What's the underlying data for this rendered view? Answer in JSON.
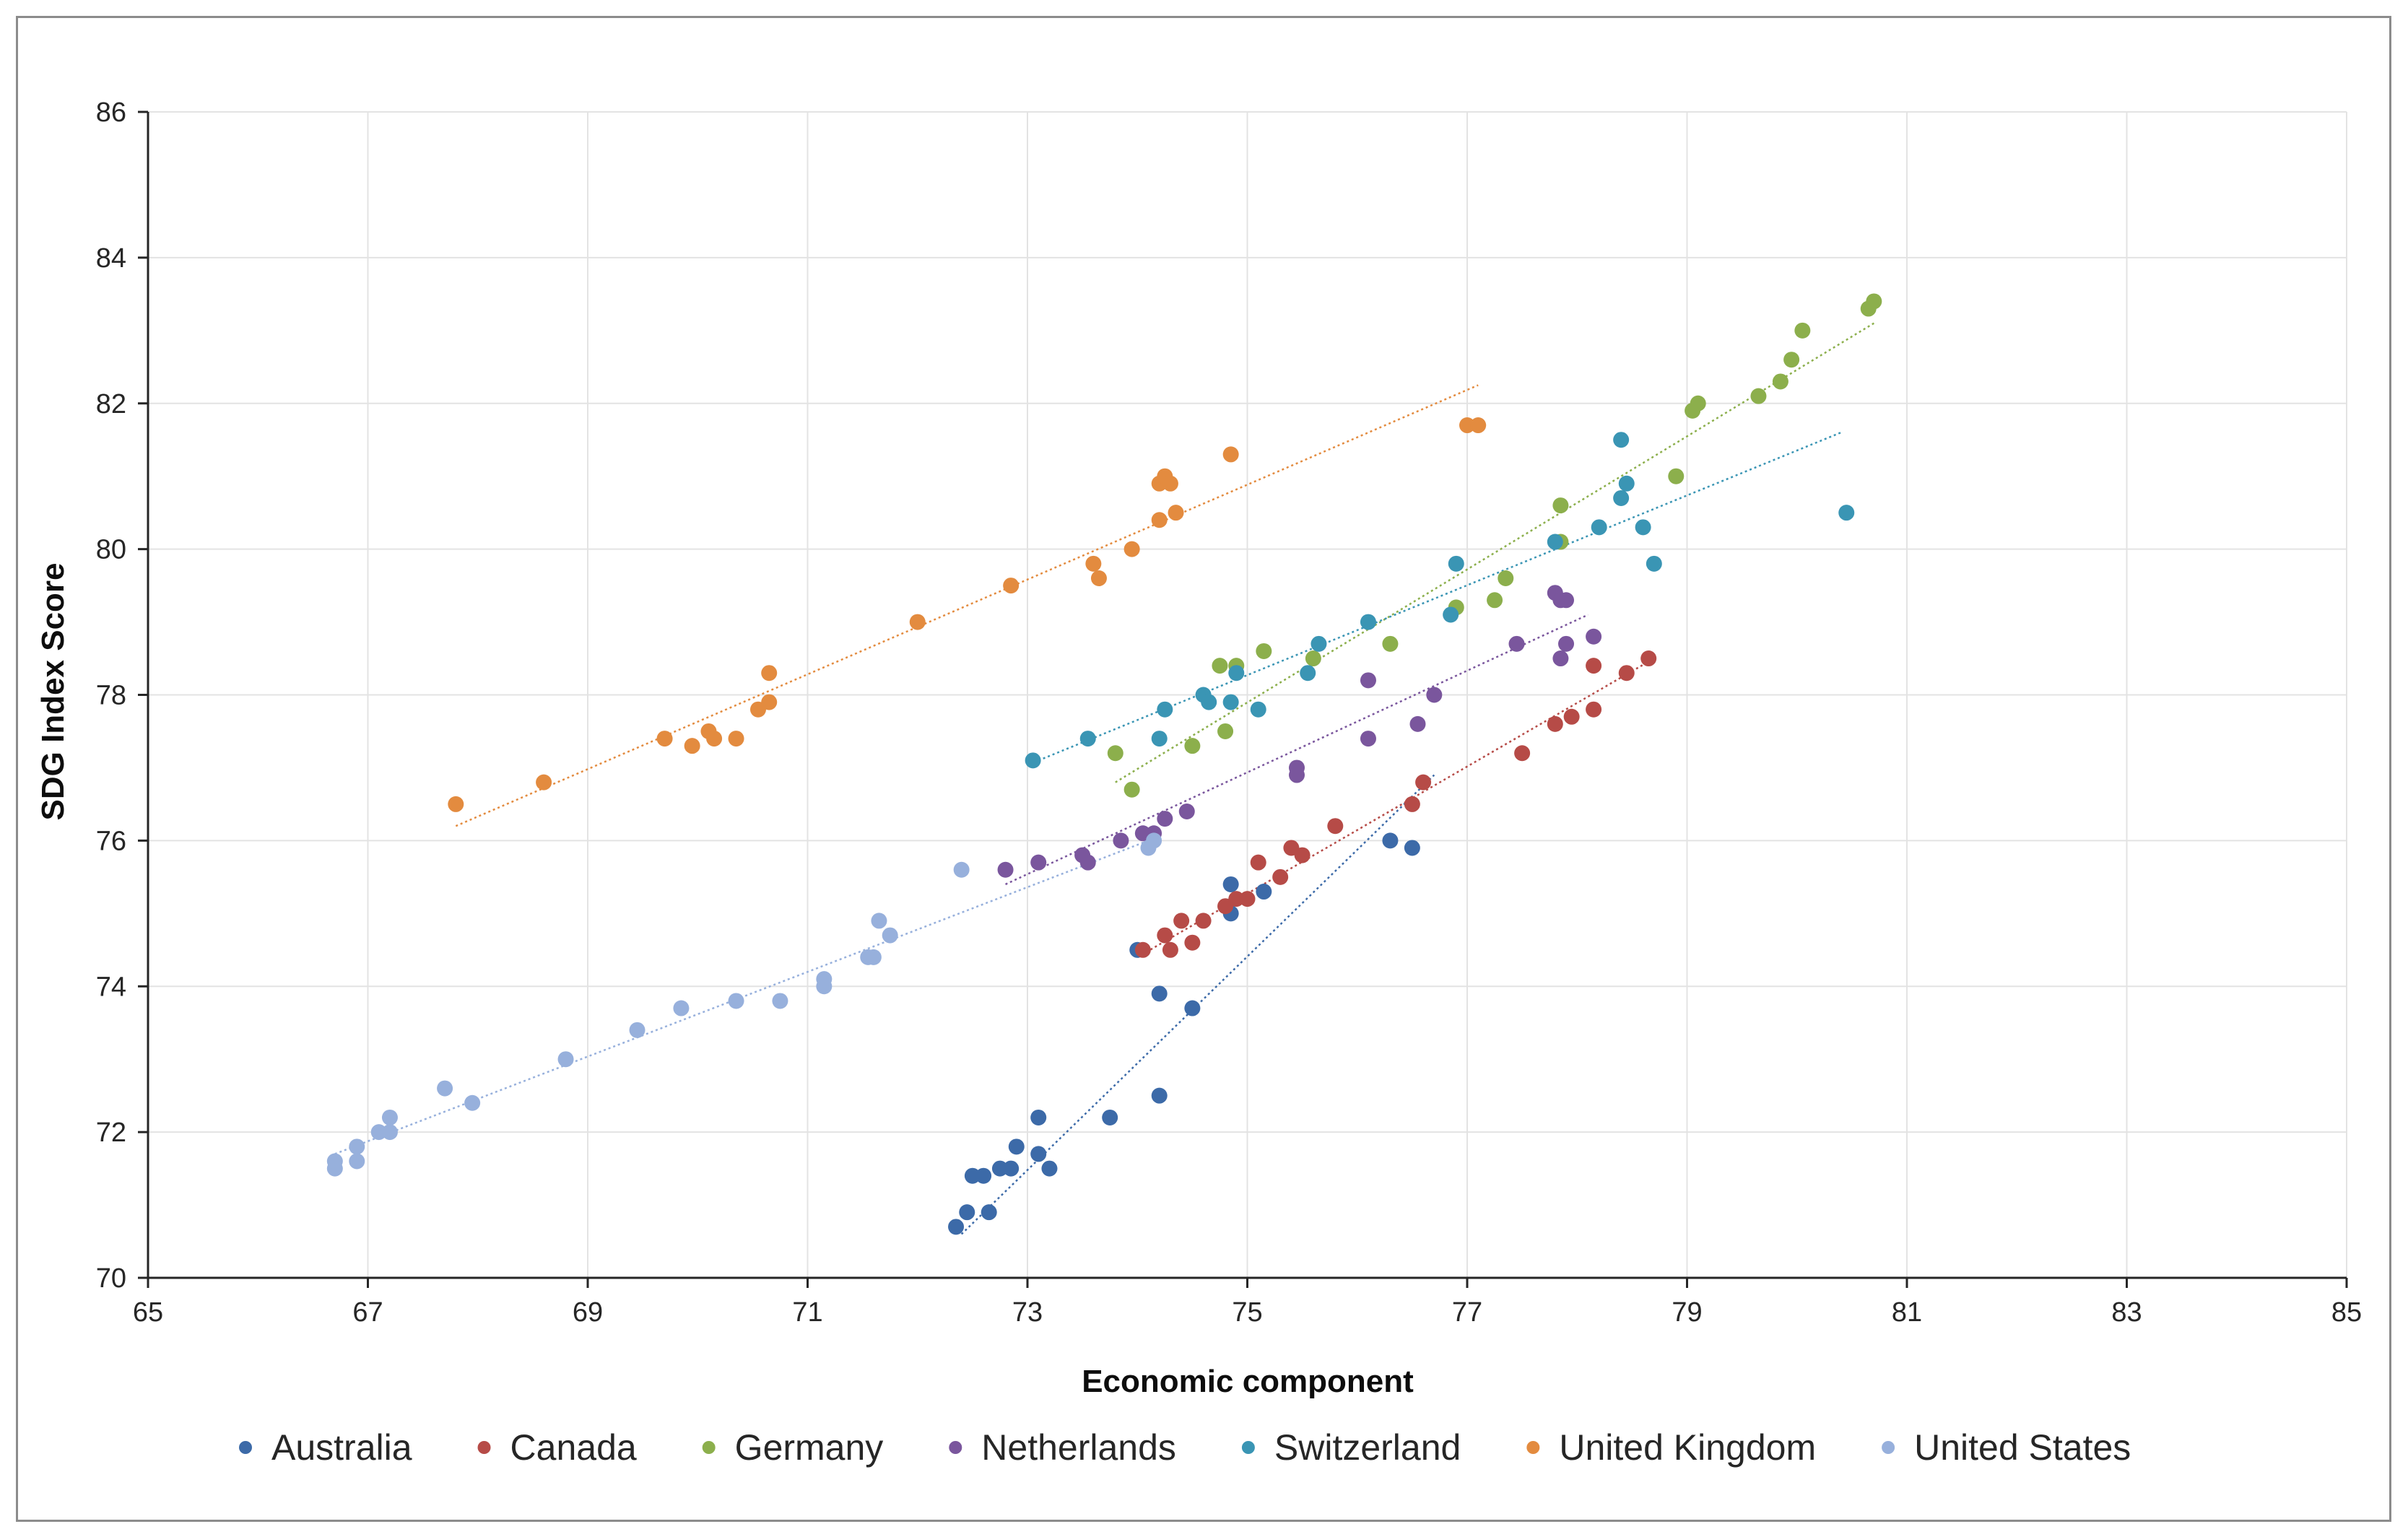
{
  "chart_data": {
    "type": "scatter",
    "title": "",
    "xlabel": "Economic component",
    "ylabel": "SDG Index Score",
    "xlim": [
      65,
      85
    ],
    "ylim": [
      70,
      86
    ],
    "xticks": [
      65,
      67,
      69,
      71,
      73,
      75,
      77,
      79,
      81,
      83,
      85
    ],
    "yticks": [
      70,
      72,
      74,
      76,
      78,
      80,
      82,
      84,
      86
    ],
    "grid": true,
    "legend_position": "bottom",
    "trendlines": "linear, dotted, one per series",
    "series": [
      {
        "name": "Australia",
        "color": "#3c6aa8",
        "points": [
          [
            72.35,
            70.7
          ],
          [
            72.45,
            70.9
          ],
          [
            72.65,
            70.9
          ],
          [
            72.5,
            71.4
          ],
          [
            72.6,
            71.4
          ],
          [
            72.75,
            71.5
          ],
          [
            72.85,
            71.5
          ],
          [
            72.9,
            71.8
          ],
          [
            73.1,
            71.7
          ],
          [
            73.2,
            71.5
          ],
          [
            73.1,
            72.2
          ],
          [
            73.75,
            72.2
          ],
          [
            74.2,
            72.5
          ],
          [
            74.5,
            73.7
          ],
          [
            74.2,
            73.9
          ],
          [
            74.0,
            74.5
          ],
          [
            74.85,
            75.0
          ],
          [
            74.85,
            75.4
          ],
          [
            75.15,
            75.3
          ],
          [
            76.3,
            76.0
          ],
          [
            76.5,
            75.9
          ]
        ],
        "trend": [
          [
            72.4,
            70.6
          ],
          [
            76.7,
            76.9
          ]
        ]
      },
      {
        "name": "Canada",
        "color": "#b64b47",
        "points": [
          [
            74.05,
            74.5
          ],
          [
            74.25,
            74.7
          ],
          [
            74.3,
            74.5
          ],
          [
            74.4,
            74.9
          ],
          [
            74.5,
            74.6
          ],
          [
            74.6,
            74.9
          ],
          [
            74.8,
            75.1
          ],
          [
            74.9,
            75.2
          ],
          [
            75.0,
            75.2
          ],
          [
            75.1,
            75.7
          ],
          [
            75.3,
            75.5
          ],
          [
            75.4,
            75.9
          ],
          [
            75.5,
            75.8
          ],
          [
            75.8,
            76.2
          ],
          [
            76.5,
            76.5
          ],
          [
            76.6,
            76.8
          ],
          [
            77.5,
            77.2
          ],
          [
            77.8,
            77.6
          ],
          [
            77.95,
            77.7
          ],
          [
            78.15,
            77.8
          ],
          [
            78.15,
            78.4
          ],
          [
            78.45,
            78.3
          ],
          [
            78.65,
            78.5
          ]
        ],
        "trend": [
          [
            74.0,
            74.4
          ],
          [
            78.7,
            78.5
          ]
        ]
      },
      {
        "name": "Germany",
        "color": "#8caf4c",
        "points": [
          [
            73.95,
            76.7
          ],
          [
            73.8,
            77.2
          ],
          [
            74.5,
            77.3
          ],
          [
            74.8,
            77.5
          ],
          [
            74.75,
            78.4
          ],
          [
            74.9,
            78.4
          ],
          [
            75.15,
            78.6
          ],
          [
            75.6,
            78.5
          ],
          [
            76.3,
            78.7
          ],
          [
            76.9,
            79.2
          ],
          [
            77.25,
            79.3
          ],
          [
            77.35,
            79.6
          ],
          [
            77.85,
            80.1
          ],
          [
            77.85,
            80.6
          ],
          [
            78.9,
            81.0
          ],
          [
            79.05,
            81.9
          ],
          [
            79.1,
            82.0
          ],
          [
            79.65,
            82.1
          ],
          [
            79.85,
            82.3
          ],
          [
            79.95,
            82.6
          ],
          [
            80.05,
            83.0
          ],
          [
            80.65,
            83.3
          ],
          [
            80.7,
            83.4
          ]
        ],
        "trend": [
          [
            73.8,
            76.8
          ],
          [
            80.7,
            83.1
          ]
        ]
      },
      {
        "name": "Netherlands",
        "color": "#7a569d",
        "points": [
          [
            72.8,
            75.6
          ],
          [
            73.1,
            75.7
          ],
          [
            73.5,
            75.8
          ],
          [
            73.55,
            75.7
          ],
          [
            73.85,
            76.0
          ],
          [
            74.05,
            76.1
          ],
          [
            74.15,
            76.1
          ],
          [
            74.25,
            76.3
          ],
          [
            74.45,
            76.4
          ],
          [
            75.45,
            77.0
          ],
          [
            75.45,
            76.9
          ],
          [
            76.1,
            77.4
          ],
          [
            76.1,
            78.2
          ],
          [
            76.55,
            77.6
          ],
          [
            76.7,
            78.0
          ],
          [
            77.45,
            78.7
          ],
          [
            77.8,
            79.4
          ],
          [
            77.85,
            79.3
          ],
          [
            77.9,
            79.3
          ],
          [
            77.85,
            78.5
          ],
          [
            77.9,
            78.7
          ],
          [
            78.15,
            78.8
          ]
        ],
        "trend": [
          [
            72.8,
            75.4
          ],
          [
            78.1,
            79.1
          ]
        ]
      },
      {
        "name": "Switzerland",
        "color": "#3a95b4",
        "points": [
          [
            73.05,
            77.1
          ],
          [
            73.55,
            77.4
          ],
          [
            74.2,
            77.4
          ],
          [
            74.25,
            77.8
          ],
          [
            74.6,
            78.0
          ],
          [
            74.65,
            77.9
          ],
          [
            74.85,
            77.9
          ],
          [
            74.9,
            78.3
          ],
          [
            75.1,
            77.8
          ],
          [
            75.55,
            78.3
          ],
          [
            75.65,
            78.7
          ],
          [
            76.1,
            79.0
          ],
          [
            76.85,
            79.1
          ],
          [
            76.9,
            79.8
          ],
          [
            77.8,
            80.1
          ],
          [
            78.2,
            80.3
          ],
          [
            78.4,
            80.7
          ],
          [
            78.4,
            81.5
          ],
          [
            78.45,
            80.9
          ],
          [
            78.6,
            80.3
          ],
          [
            78.7,
            79.8
          ],
          [
            80.45,
            80.5
          ]
        ],
        "trend": [
          [
            73.1,
            77.1
          ],
          [
            80.4,
            81.6
          ]
        ]
      },
      {
        "name": "United Kingdom",
        "color": "#e38b3f",
        "points": [
          [
            67.8,
            76.5
          ],
          [
            68.6,
            76.8
          ],
          [
            69.7,
            77.4
          ],
          [
            69.95,
            77.3
          ],
          [
            70.1,
            77.5
          ],
          [
            70.15,
            77.4
          ],
          [
            70.35,
            77.4
          ],
          [
            70.55,
            77.8
          ],
          [
            70.65,
            77.9
          ],
          [
            70.65,
            78.3
          ],
          [
            72.0,
            79.0
          ],
          [
            72.85,
            79.5
          ],
          [
            73.6,
            79.8
          ],
          [
            73.65,
            79.6
          ],
          [
            73.95,
            80.0
          ],
          [
            74.2,
            80.4
          ],
          [
            74.2,
            80.9
          ],
          [
            74.25,
            81.0
          ],
          [
            74.3,
            80.9
          ],
          [
            74.35,
            80.5
          ],
          [
            74.85,
            81.3
          ],
          [
            77.0,
            81.7
          ],
          [
            77.1,
            81.7
          ]
        ],
        "trend": [
          [
            67.8,
            76.2
          ],
          [
            77.1,
            82.25
          ]
        ]
      },
      {
        "name": "United States",
        "color": "#97b0dc",
        "points": [
          [
            66.7,
            71.5
          ],
          [
            66.7,
            71.6
          ],
          [
            66.9,
            71.6
          ],
          [
            66.9,
            71.8
          ],
          [
            67.1,
            72.0
          ],
          [
            67.2,
            72.0
          ],
          [
            67.2,
            72.2
          ],
          [
            67.7,
            72.6
          ],
          [
            67.95,
            72.4
          ],
          [
            68.8,
            73.0
          ],
          [
            69.45,
            73.4
          ],
          [
            69.85,
            73.7
          ],
          [
            70.35,
            73.8
          ],
          [
            70.75,
            73.8
          ],
          [
            71.15,
            74.0
          ],
          [
            71.15,
            74.1
          ],
          [
            71.55,
            74.4
          ],
          [
            71.6,
            74.4
          ],
          [
            71.65,
            74.9
          ],
          [
            71.75,
            74.7
          ],
          [
            72.4,
            75.6
          ],
          [
            74.1,
            75.9
          ],
          [
            74.15,
            76.0
          ]
        ],
        "trend": [
          [
            66.7,
            71.7
          ],
          [
            74.1,
            76.0
          ]
        ]
      }
    ]
  }
}
